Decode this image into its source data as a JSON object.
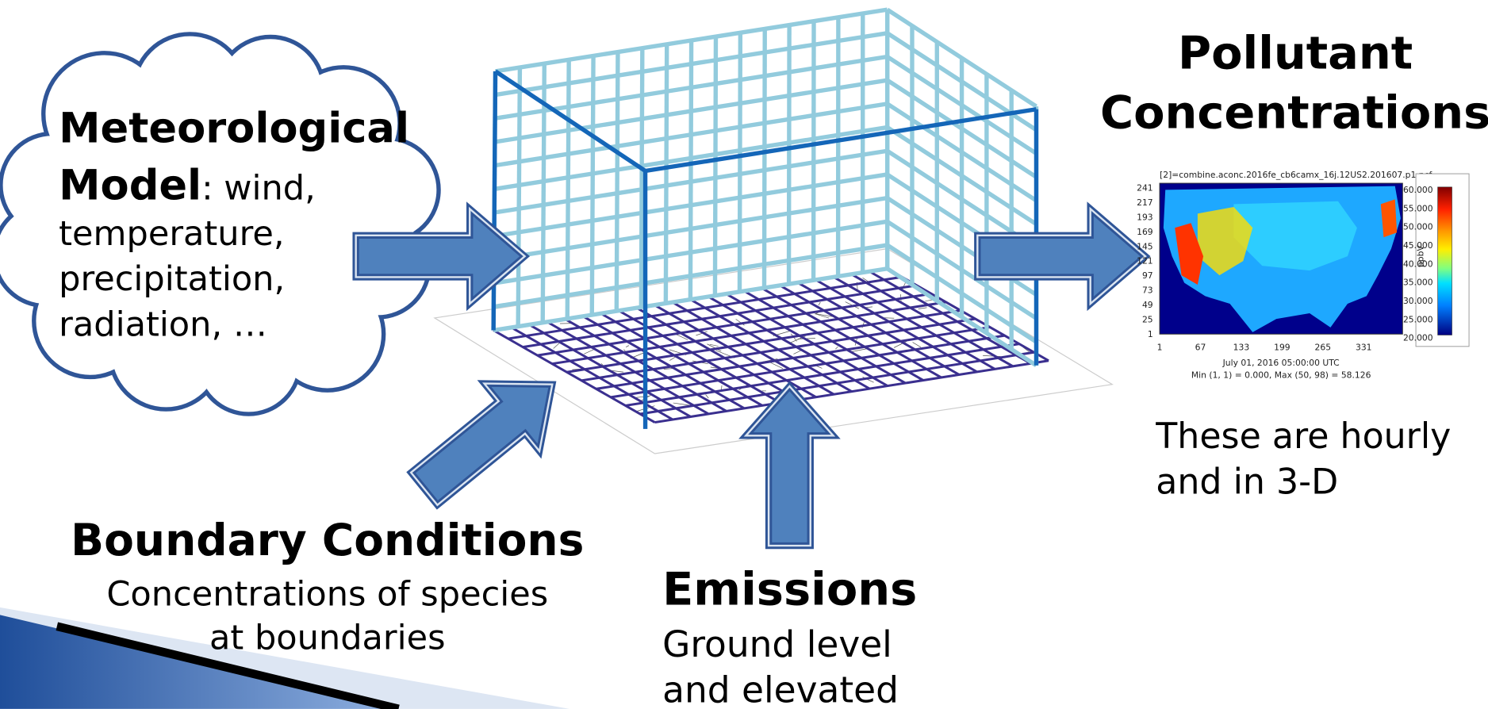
{
  "meteorological": {
    "title_lines": [
      "Meteorological",
      "Model"
    ],
    "detail_lines": [
      ": wind,",
      "temperature,",
      "precipitation,",
      "radiation, …"
    ]
  },
  "boundary": {
    "title": "Boundary Conditions",
    "lines": [
      "Concentrations of species",
      "at boundaries"
    ]
  },
  "emissions": {
    "title": "Emissions",
    "lines": [
      "Ground level",
      "and elevated"
    ]
  },
  "output": {
    "title_lines": [
      "Pollutant",
      "Concentrations"
    ],
    "note_lines": [
      "These are hourly",
      "and in 3-D"
    ],
    "map": {
      "title": "[2]=combine.aconc.2016fe_cb6camx_16j.12US2.201607.p1.ncf",
      "y_ticks": [
        241,
        217,
        193,
        169,
        145,
        121,
        97,
        73,
        49,
        25,
        1
      ],
      "x_ticks": [
        1,
        67,
        133,
        199,
        265,
        331
      ],
      "caption_lines": [
        "July 01, 2016 05:00:00 UTC",
        "Min (1, 1) = 0.000, Max (50, 98) = 58.126"
      ],
      "colorbar_labels": [
        "60.000",
        "55.000",
        "50.000",
        "45.000",
        "40.000",
        "35.000",
        "30.000",
        "25.000",
        "20.000"
      ],
      "unit": "ppbV"
    }
  }
}
